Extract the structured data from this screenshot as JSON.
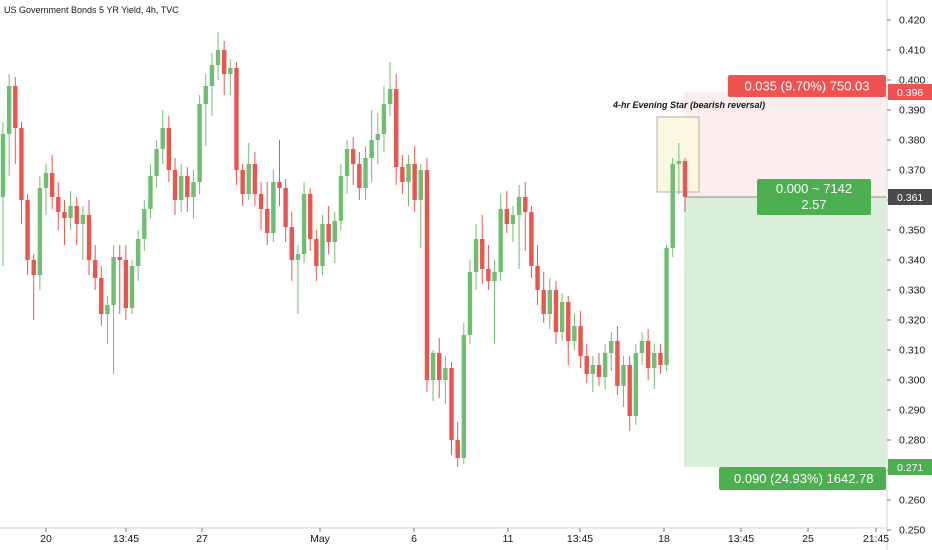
{
  "header": {
    "symbol_label": "US Government Bonds 5 YR Yield, 4h, TVC"
  },
  "colors": {
    "up": "#6fbf73",
    "down": "#ef5350",
    "profit_zone": "#d9efd9",
    "loss_zone": "#fdeeee",
    "label_green": "#4caf50",
    "label_red": "#ef5350",
    "last_price_bg": "#4a4a4a",
    "highlight_box": "#fbf8e1"
  },
  "annotation": {
    "pattern_text": "4-hr Evening Star (bearish reversal)"
  },
  "position": {
    "entry_price": 0.361,
    "stop_price": 0.396,
    "target_price": 0.271,
    "stop_label": "0.035 (9.70%) 750.03",
    "entry_label_line1": "0.000 ~ 7142",
    "entry_label_line2": "2.57",
    "target_label": "0.090 (24.93%) 1642.78"
  },
  "price_axis": {
    "last_price_label": "0.361",
    "stop_price_label": "0.396",
    "target_price_label": "0.271"
  },
  "chart_data": {
    "type": "candlestick",
    "title": "US Government Bonds 5 YR Yield, 4h, TVC",
    "y_ticks": [
      "0.250",
      "0.260",
      "0.270",
      "0.280",
      "0.290",
      "0.300",
      "0.310",
      "0.320",
      "0.330",
      "0.340",
      "0.350",
      "0.360",
      "0.370",
      "0.380",
      "0.390",
      "0.400",
      "0.410",
      "0.420"
    ],
    "ylim": [
      0.245,
      0.422
    ],
    "x_ticks": [
      "20",
      "13:45",
      "27",
      "May",
      "6",
      "11",
      "13:45",
      "18",
      "13:45",
      "25",
      "21:45"
    ],
    "candles": [
      {
        "o": 0.361,
        "h": 0.386,
        "l": 0.338,
        "c": 0.382
      },
      {
        "o": 0.382,
        "h": 0.402,
        "l": 0.368,
        "c": 0.398
      },
      {
        "o": 0.398,
        "h": 0.401,
        "l": 0.372,
        "c": 0.384
      },
      {
        "o": 0.384,
        "h": 0.386,
        "l": 0.352,
        "c": 0.36
      },
      {
        "o": 0.36,
        "h": 0.362,
        "l": 0.335,
        "c": 0.34
      },
      {
        "o": 0.34,
        "h": 0.342,
        "l": 0.32,
        "c": 0.335
      },
      {
        "o": 0.335,
        "h": 0.368,
        "l": 0.33,
        "c": 0.364
      },
      {
        "o": 0.364,
        "h": 0.372,
        "l": 0.355,
        "c": 0.369
      },
      {
        "o": 0.369,
        "h": 0.375,
        "l": 0.357,
        "c": 0.361
      },
      {
        "o": 0.361,
        "h": 0.366,
        "l": 0.35,
        "c": 0.356
      },
      {
        "o": 0.356,
        "h": 0.36,
        "l": 0.345,
        "c": 0.354
      },
      {
        "o": 0.354,
        "h": 0.363,
        "l": 0.35,
        "c": 0.358
      },
      {
        "o": 0.358,
        "h": 0.361,
        "l": 0.345,
        "c": 0.352
      },
      {
        "o": 0.352,
        "h": 0.358,
        "l": 0.34,
        "c": 0.355
      },
      {
        "o": 0.355,
        "h": 0.36,
        "l": 0.335,
        "c": 0.34
      },
      {
        "o": 0.34,
        "h": 0.345,
        "l": 0.33,
        "c": 0.334
      },
      {
        "o": 0.334,
        "h": 0.338,
        "l": 0.318,
        "c": 0.322
      },
      {
        "o": 0.322,
        "h": 0.328,
        "l": 0.312,
        "c": 0.325
      },
      {
        "o": 0.325,
        "h": 0.345,
        "l": 0.302,
        "c": 0.341
      },
      {
        "o": 0.341,
        "h": 0.345,
        "l": 0.322,
        "c": 0.34
      },
      {
        "o": 0.34,
        "h": 0.345,
        "l": 0.32,
        "c": 0.324
      },
      {
        "o": 0.324,
        "h": 0.34,
        "l": 0.322,
        "c": 0.338
      },
      {
        "o": 0.338,
        "h": 0.35,
        "l": 0.333,
        "c": 0.347
      },
      {
        "o": 0.347,
        "h": 0.36,
        "l": 0.343,
        "c": 0.357
      },
      {
        "o": 0.357,
        "h": 0.372,
        "l": 0.354,
        "c": 0.368
      },
      {
        "o": 0.368,
        "h": 0.38,
        "l": 0.364,
        "c": 0.377
      },
      {
        "o": 0.377,
        "h": 0.39,
        "l": 0.372,
        "c": 0.384
      },
      {
        "o": 0.384,
        "h": 0.388,
        "l": 0.366,
        "c": 0.37
      },
      {
        "o": 0.37,
        "h": 0.374,
        "l": 0.355,
        "c": 0.36
      },
      {
        "o": 0.36,
        "h": 0.372,
        "l": 0.356,
        "c": 0.368
      },
      {
        "o": 0.368,
        "h": 0.371,
        "l": 0.356,
        "c": 0.361
      },
      {
        "o": 0.361,
        "h": 0.37,
        "l": 0.354,
        "c": 0.366
      },
      {
        "o": 0.366,
        "h": 0.395,
        "l": 0.362,
        "c": 0.392
      },
      {
        "o": 0.392,
        "h": 0.402,
        "l": 0.378,
        "c": 0.398
      },
      {
        "o": 0.398,
        "h": 0.409,
        "l": 0.388,
        "c": 0.405
      },
      {
        "o": 0.405,
        "h": 0.416,
        "l": 0.4,
        "c": 0.41
      },
      {
        "o": 0.41,
        "h": 0.413,
        "l": 0.395,
        "c": 0.402
      },
      {
        "o": 0.402,
        "h": 0.407,
        "l": 0.395,
        "c": 0.404
      },
      {
        "o": 0.404,
        "h": 0.406,
        "l": 0.365,
        "c": 0.37
      },
      {
        "o": 0.37,
        "h": 0.372,
        "l": 0.358,
        "c": 0.362
      },
      {
        "o": 0.362,
        "h": 0.379,
        "l": 0.36,
        "c": 0.372
      },
      {
        "o": 0.372,
        "h": 0.376,
        "l": 0.358,
        "c": 0.362
      },
      {
        "o": 0.362,
        "h": 0.366,
        "l": 0.35,
        "c": 0.357
      },
      {
        "o": 0.357,
        "h": 0.366,
        "l": 0.345,
        "c": 0.349
      },
      {
        "o": 0.349,
        "h": 0.37,
        "l": 0.346,
        "c": 0.366
      },
      {
        "o": 0.366,
        "h": 0.38,
        "l": 0.358,
        "c": 0.364
      },
      {
        "o": 0.364,
        "h": 0.367,
        "l": 0.346,
        "c": 0.351
      },
      {
        "o": 0.351,
        "h": 0.356,
        "l": 0.333,
        "c": 0.34
      },
      {
        "o": 0.34,
        "h": 0.345,
        "l": 0.322,
        "c": 0.342
      },
      {
        "o": 0.342,
        "h": 0.366,
        "l": 0.339,
        "c": 0.362
      },
      {
        "o": 0.362,
        "h": 0.364,
        "l": 0.343,
        "c": 0.347
      },
      {
        "o": 0.347,
        "h": 0.35,
        "l": 0.333,
        "c": 0.338
      },
      {
        "o": 0.338,
        "h": 0.355,
        "l": 0.335,
        "c": 0.352
      },
      {
        "o": 0.352,
        "h": 0.358,
        "l": 0.342,
        "c": 0.346
      },
      {
        "o": 0.346,
        "h": 0.356,
        "l": 0.339,
        "c": 0.353
      },
      {
        "o": 0.353,
        "h": 0.372,
        "l": 0.35,
        "c": 0.368
      },
      {
        "o": 0.368,
        "h": 0.38,
        "l": 0.362,
        "c": 0.377
      },
      {
        "o": 0.377,
        "h": 0.381,
        "l": 0.365,
        "c": 0.372
      },
      {
        "o": 0.372,
        "h": 0.376,
        "l": 0.36,
        "c": 0.364
      },
      {
        "o": 0.364,
        "h": 0.378,
        "l": 0.36,
        "c": 0.374
      },
      {
        "o": 0.374,
        "h": 0.39,
        "l": 0.366,
        "c": 0.38
      },
      {
        "o": 0.38,
        "h": 0.389,
        "l": 0.372,
        "c": 0.382
      },
      {
        "o": 0.382,
        "h": 0.398,
        "l": 0.376,
        "c": 0.392
      },
      {
        "o": 0.392,
        "h": 0.406,
        "l": 0.388,
        "c": 0.397
      },
      {
        "o": 0.397,
        "h": 0.402,
        "l": 0.365,
        "c": 0.371
      },
      {
        "o": 0.371,
        "h": 0.375,
        "l": 0.362,
        "c": 0.366
      },
      {
        "o": 0.366,
        "h": 0.375,
        "l": 0.358,
        "c": 0.372
      },
      {
        "o": 0.372,
        "h": 0.378,
        "l": 0.356,
        "c": 0.36
      },
      {
        "o": 0.36,
        "h": 0.372,
        "l": 0.344,
        "c": 0.37
      },
      {
        "o": 0.37,
        "h": 0.374,
        "l": 0.296,
        "c": 0.3
      },
      {
        "o": 0.3,
        "h": 0.31,
        "l": 0.293,
        "c": 0.309
      },
      {
        "o": 0.309,
        "h": 0.314,
        "l": 0.294,
        "c": 0.3
      },
      {
        "o": 0.3,
        "h": 0.308,
        "l": 0.292,
        "c": 0.304
      },
      {
        "o": 0.304,
        "h": 0.306,
        "l": 0.275,
        "c": 0.28
      },
      {
        "o": 0.28,
        "h": 0.286,
        "l": 0.271,
        "c": 0.274
      },
      {
        "o": 0.274,
        "h": 0.319,
        "l": 0.272,
        "c": 0.315
      },
      {
        "o": 0.315,
        "h": 0.34,
        "l": 0.312,
        "c": 0.336
      },
      {
        "o": 0.336,
        "h": 0.352,
        "l": 0.33,
        "c": 0.347
      },
      {
        "o": 0.347,
        "h": 0.355,
        "l": 0.332,
        "c": 0.337
      },
      {
        "o": 0.337,
        "h": 0.345,
        "l": 0.33,
        "c": 0.333
      },
      {
        "o": 0.333,
        "h": 0.34,
        "l": 0.312,
        "c": 0.336
      },
      {
        "o": 0.336,
        "h": 0.362,
        "l": 0.333,
        "c": 0.357
      },
      {
        "o": 0.357,
        "h": 0.363,
        "l": 0.349,
        "c": 0.352
      },
      {
        "o": 0.352,
        "h": 0.358,
        "l": 0.346,
        "c": 0.355
      },
      {
        "o": 0.355,
        "h": 0.365,
        "l": 0.337,
        "c": 0.361
      },
      {
        "o": 0.361,
        "h": 0.366,
        "l": 0.343,
        "c": 0.356
      },
      {
        "o": 0.356,
        "h": 0.358,
        "l": 0.334,
        "c": 0.338
      },
      {
        "o": 0.338,
        "h": 0.345,
        "l": 0.325,
        "c": 0.33
      },
      {
        "o": 0.33,
        "h": 0.336,
        "l": 0.319,
        "c": 0.322
      },
      {
        "o": 0.322,
        "h": 0.334,
        "l": 0.317,
        "c": 0.33
      },
      {
        "o": 0.33,
        "h": 0.333,
        "l": 0.312,
        "c": 0.316
      },
      {
        "o": 0.316,
        "h": 0.329,
        "l": 0.313,
        "c": 0.326
      },
      {
        "o": 0.326,
        "h": 0.328,
        "l": 0.305,
        "c": 0.313
      },
      {
        "o": 0.313,
        "h": 0.322,
        "l": 0.31,
        "c": 0.318
      },
      {
        "o": 0.318,
        "h": 0.323,
        "l": 0.304,
        "c": 0.308
      },
      {
        "o": 0.308,
        "h": 0.312,
        "l": 0.299,
        "c": 0.302
      },
      {
        "o": 0.302,
        "h": 0.308,
        "l": 0.296,
        "c": 0.305
      },
      {
        "o": 0.305,
        "h": 0.309,
        "l": 0.298,
        "c": 0.301
      },
      {
        "o": 0.301,
        "h": 0.312,
        "l": 0.297,
        "c": 0.309
      },
      {
        "o": 0.309,
        "h": 0.316,
        "l": 0.303,
        "c": 0.313
      },
      {
        "o": 0.313,
        "h": 0.318,
        "l": 0.295,
        "c": 0.298
      },
      {
        "o": 0.298,
        "h": 0.308,
        "l": 0.291,
        "c": 0.305
      },
      {
        "o": 0.305,
        "h": 0.308,
        "l": 0.283,
        "c": 0.288
      },
      {
        "o": 0.288,
        "h": 0.312,
        "l": 0.285,
        "c": 0.309
      },
      {
        "o": 0.309,
        "h": 0.316,
        "l": 0.305,
        "c": 0.313
      },
      {
        "o": 0.313,
        "h": 0.317,
        "l": 0.3,
        "c": 0.304
      },
      {
        "o": 0.304,
        "h": 0.312,
        "l": 0.297,
        "c": 0.309
      },
      {
        "o": 0.309,
        "h": 0.312,
        "l": 0.302,
        "c": 0.305
      },
      {
        "o": 0.305,
        "h": 0.345,
        "l": 0.303,
        "c": 0.344
      },
      {
        "o": 0.344,
        "h": 0.374,
        "l": 0.341,
        "c": 0.372
      },
      {
        "o": 0.372,
        "h": 0.379,
        "l": 0.362,
        "c": 0.373
      },
      {
        "o": 0.373,
        "h": 0.374,
        "l": 0.356,
        "c": 0.361
      }
    ]
  }
}
